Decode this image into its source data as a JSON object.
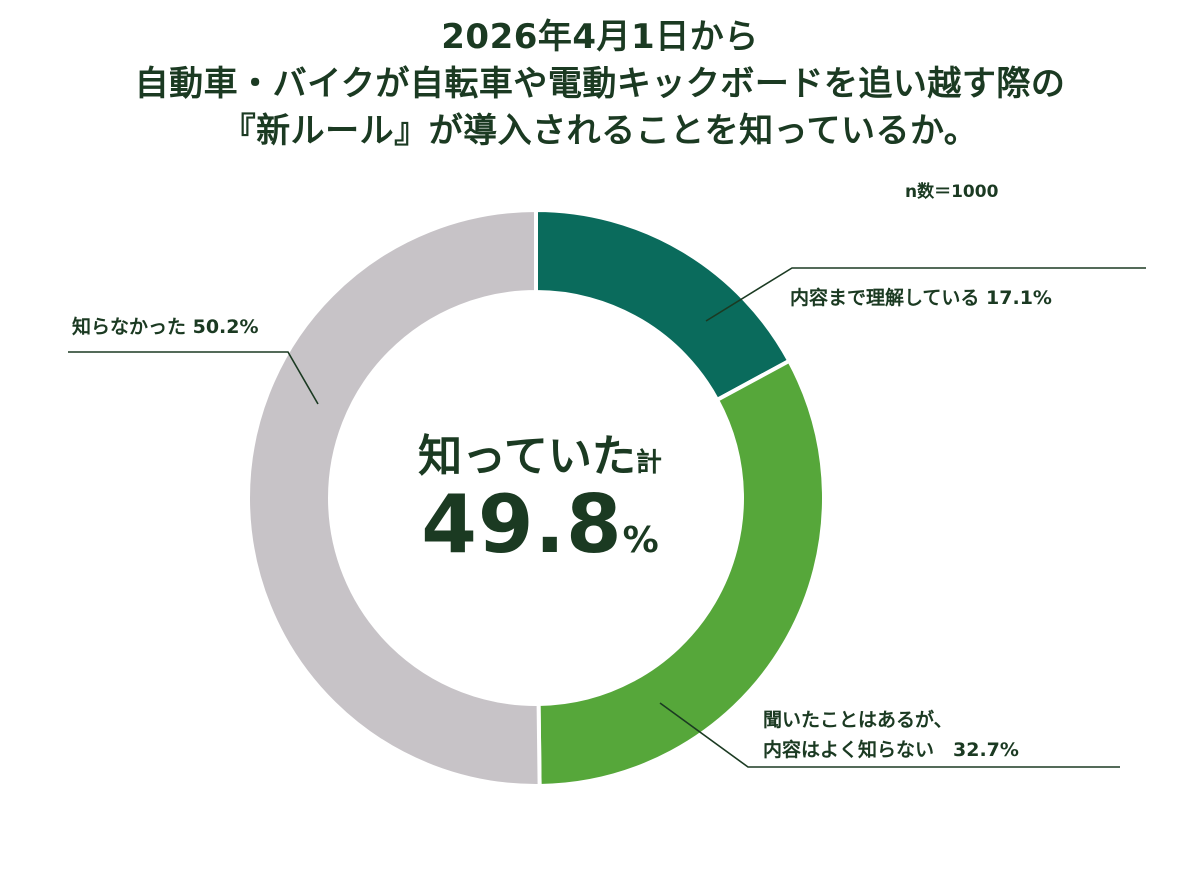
{
  "title": {
    "line1": "2026年4月1日から",
    "line2": "自動車・バイクが自転車や電動キックボードを追い越す際の",
    "line3": "『新ルール』が導入されることを知っているか。"
  },
  "sample_size": "n数＝1000",
  "center": {
    "label": "知っていた",
    "label_suffix": "計",
    "value": "49.8",
    "unit": "%"
  },
  "labels": {
    "detail": "内容まで理解している 17.1%",
    "heard_line1": "聞いたことはあるが、",
    "heard_line2": "内容はよく知らない　32.7%",
    "unaware": "知らなかった 50.2%"
  },
  "chart_data": {
    "type": "pie",
    "variant": "donut",
    "title": "2026年4月1日から 自動車・バイクが自転車や電動キックボードを追い越す際の『新ルール』が導入されることを知っているか。",
    "categories": [
      "内容まで理解している",
      "聞いたことはあるが、内容はよく知らない",
      "知らなかった"
    ],
    "values": [
      17.1,
      32.7,
      50.2
    ],
    "colors": [
      "#0a6b5c",
      "#56a73a",
      "#c7c3c7"
    ],
    "unit": "%",
    "n": 1000
  }
}
